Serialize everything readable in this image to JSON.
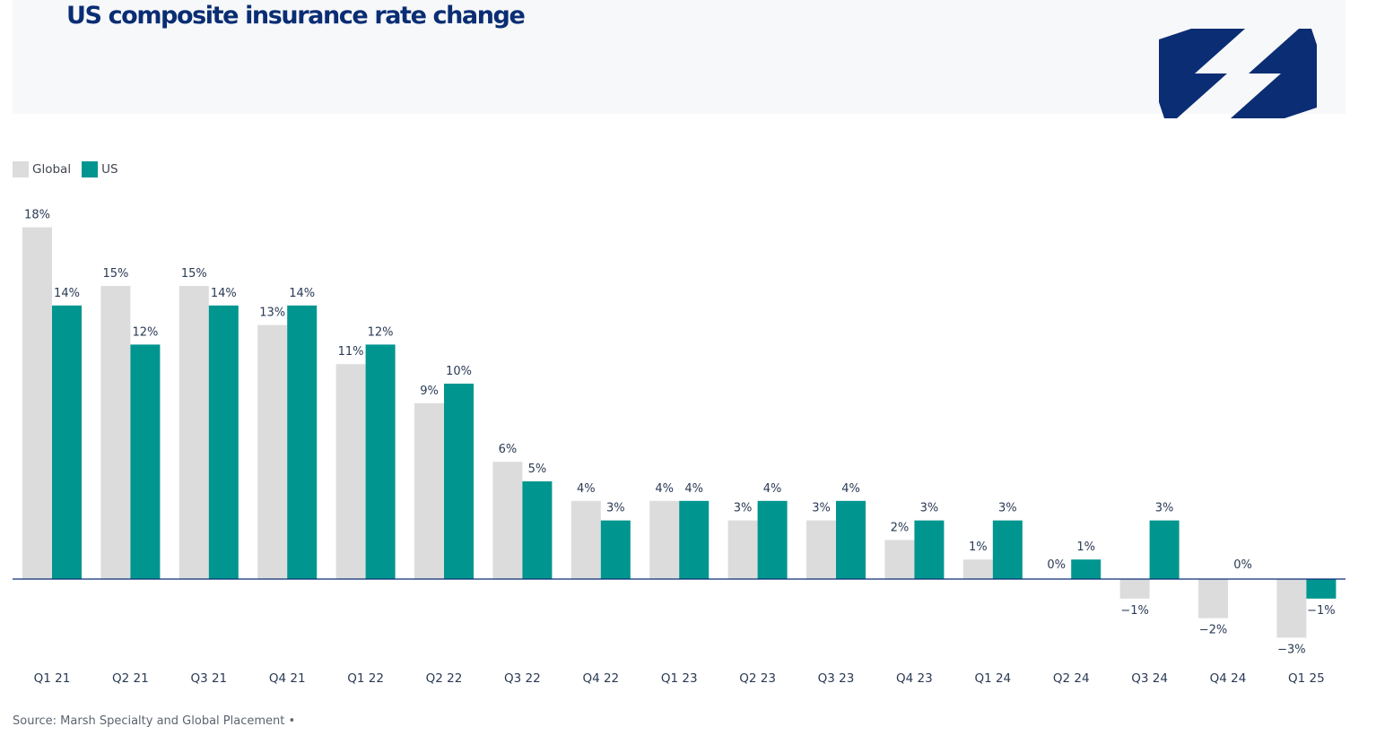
{
  "header": {
    "title": "US composite insurance rate change"
  },
  "logo": {
    "icon": "marsh-logo-icon",
    "color": "#0a2d74"
  },
  "colors": {
    "global": "#dcdcdc",
    "us": "#00968f",
    "axis": "#0a2d74",
    "text": "#2a3a55"
  },
  "source": "Source: Marsh Specialty and Global Placement •",
  "chart_data": {
    "type": "bar",
    "categories": [
      "Q1 21",
      "Q2 21",
      "Q3 21",
      "Q4 21",
      "Q1 22",
      "Q2 22",
      "Q3 22",
      "Q4 22",
      "Q1 23",
      "Q2 23",
      "Q3 23",
      "Q4 23",
      "Q1 24",
      "Q2 24",
      "Q3 24",
      "Q4 24",
      "Q1 25"
    ],
    "series": [
      {
        "name": "Global",
        "color": "#dcdcdc",
        "values": [
          18,
          15,
          15,
          13,
          11,
          9,
          6,
          4,
          4,
          3,
          3,
          2,
          1,
          0,
          -1,
          -2,
          -3
        ],
        "labels": [
          "18%",
          "15%",
          "15%",
          "13%",
          "11%",
          "9%",
          "6%",
          "4%",
          "4%",
          "3%",
          "3%",
          "2%",
          "1%",
          "0%",
          "−1%",
          "−2%",
          "−3%"
        ]
      },
      {
        "name": "US",
        "color": "#00968f",
        "values": [
          14,
          12,
          14,
          14,
          12,
          10,
          5,
          3,
          4,
          4,
          4,
          3,
          3,
          1,
          3,
          0,
          -1
        ],
        "labels": [
          "14%",
          "12%",
          "14%",
          "14%",
          "12%",
          "10%",
          "5%",
          "3%",
          "4%",
          "4%",
          "4%",
          "3%",
          "3%",
          "1%",
          "3%",
          "0%",
          "−1%"
        ]
      }
    ],
    "ylim": [
      -3,
      18
    ],
    "grid": false,
    "legend_position": "top-left",
    "title": "",
    "xlabel": "",
    "ylabel": ""
  }
}
